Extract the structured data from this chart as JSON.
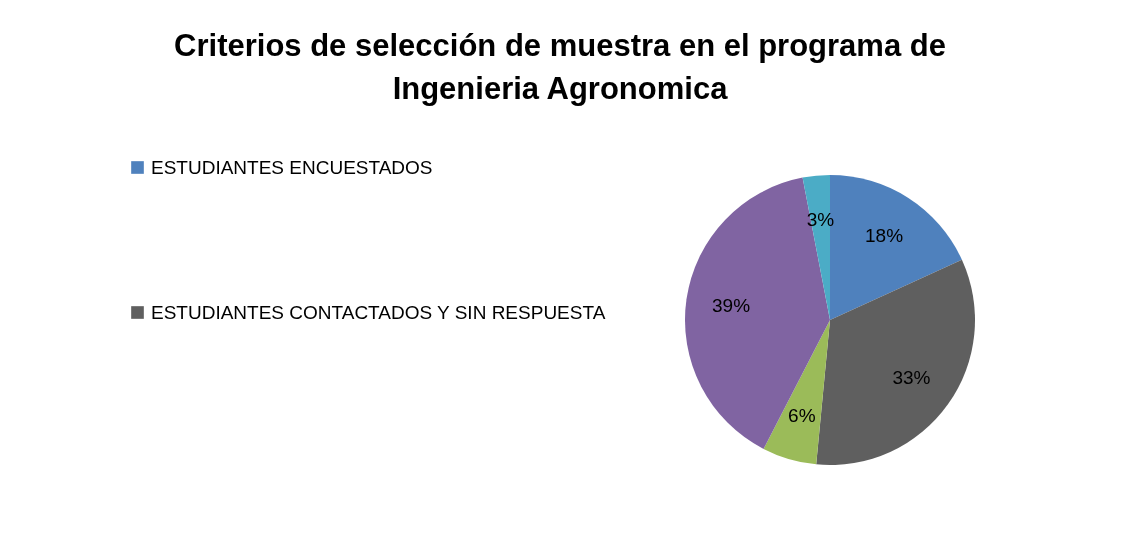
{
  "chart_data": {
    "type": "pie",
    "title": "Criterios de selección de muestra en el programa de Ingenieria Agronomica",
    "categories": [
      "ESTUDIANTES ENCUESTADOS",
      "ESTUDIANTES CONTACTADOS Y SIN RESPUESTA",
      null,
      null,
      null
    ],
    "values": [
      18,
      33,
      6,
      39,
      3
    ],
    "colors": [
      "#4f81bd",
      "#5f5f5f",
      "#9bbb59",
      "#8064a2",
      "#4bacc6"
    ],
    "value_labels": [
      "18%",
      "33%",
      "6%",
      "39%",
      "3%"
    ],
    "legend": "left"
  }
}
